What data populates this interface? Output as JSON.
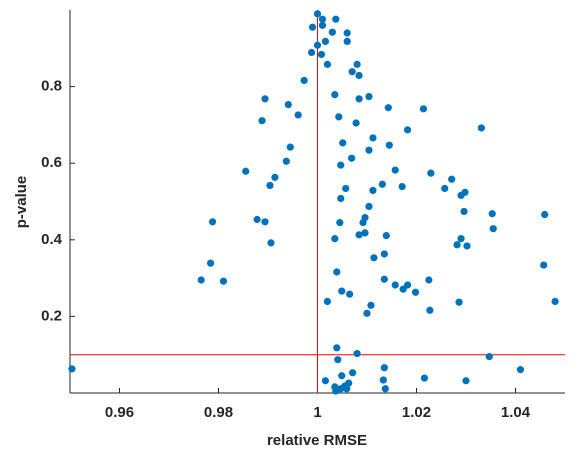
{
  "chart_data": {
    "type": "scatter",
    "xlabel": "relative RMSE",
    "ylabel": "p-value",
    "xlim": [
      0.95,
      1.05
    ],
    "ylim": [
      0,
      1
    ],
    "xticks": [
      0.96,
      0.98,
      1,
      1.02,
      1.04
    ],
    "yticks": [
      0.2,
      0.4,
      0.6,
      0.8
    ],
    "reference_lines": [
      {
        "axis": "x",
        "value": 1,
        "color": "#ff0000"
      },
      {
        "axis": "y",
        "value": 0.1,
        "color": "#ff0000"
      }
    ],
    "series": [
      {
        "color": "#0072bd",
        "x": [
          0.9504,
          1.0,
          1.001,
          1.0037,
          1.001,
          0.999,
          1.003,
          1.006,
          1.0016,
          1.0,
          1.006,
          0.9988,
          1.0008,
          1.002,
          1.008,
          1.007,
          1.0084,
          0.9973,
          1.0035,
          0.9894,
          1.0104,
          1.0084,
          0.9941,
          1.0143,
          1.0214,
          0.9961,
          0.9888,
          1.0043,
          1.0078,
          1.0182,
          1.0331,
          1.0112,
          1.0145,
          1.0051,
          0.9945,
          1.0104,
          1.0069,
          0.9937,
          1.0047,
          1.0157,
          0.9855,
          1.0229,
          1.0271,
          0.9914,
          1.0131,
          0.9904,
          1.0057,
          1.0171,
          1.0112,
          1.0257,
          1.029,
          1.0298,
          1.0047,
          1.0104,
          1.0353,
          1.0459,
          1.0296,
          1.0096,
          0.9878,
          0.9894,
          0.9788,
          1.0092,
          1.0045,
          1.0355,
          1.0096,
          1.0084,
          1.0139,
          1.029,
          1.0282,
          1.0035,
          0.9906,
          1.0302,
          1.0135,
          1.0114,
          0.9784,
          1.0457,
          1.0039,
          0.9765,
          0.981,
          1.0135,
          1.0225,
          1.0157,
          1.0182,
          1.0173,
          1.0198,
          1.0049,
          1.0065,
          1.002,
          1.048,
          1.0286,
          1.0108,
          1.01,
          1.0227,
          1.0039,
          1.008,
          1.0041,
          1.0347,
          1.0135,
          1.041,
          1.0071,
          1.0049,
          1.0216,
          1.0133,
          1.0016,
          1.03,
          1.0063,
          1.0055,
          1.0035,
          1.0047,
          1.0137,
          1.0037,
          1.0059
        ],
        "values": [
          0.063,
          0.99,
          0.976,
          0.976,
          0.96,
          0.955,
          0.942,
          0.94,
          0.918,
          0.908,
          0.918,
          0.889,
          0.884,
          0.858,
          0.858,
          0.839,
          0.829,
          0.816,
          0.779,
          0.768,
          0.774,
          0.768,
          0.753,
          0.745,
          0.742,
          0.726,
          0.711,
          0.721,
          0.705,
          0.687,
          0.692,
          0.666,
          0.647,
          0.653,
          0.642,
          0.634,
          0.613,
          0.605,
          0.595,
          0.582,
          0.579,
          0.574,
          0.558,
          0.563,
          0.545,
          0.542,
          0.534,
          0.539,
          0.529,
          0.534,
          0.516,
          0.524,
          0.508,
          0.487,
          0.468,
          0.466,
          0.474,
          0.458,
          0.453,
          0.447,
          0.447,
          0.445,
          0.445,
          0.429,
          0.418,
          0.413,
          0.411,
          0.403,
          0.387,
          0.403,
          0.392,
          0.384,
          0.363,
          0.353,
          0.339,
          0.334,
          0.316,
          0.295,
          0.292,
          0.297,
          0.295,
          0.282,
          0.282,
          0.271,
          0.263,
          0.266,
          0.258,
          0.239,
          0.239,
          0.237,
          0.229,
          0.208,
          0.216,
          0.118,
          0.103,
          0.087,
          0.095,
          0.066,
          0.061,
          0.053,
          0.045,
          0.039,
          0.034,
          0.032,
          0.032,
          0.026,
          0.018,
          0.016,
          0.011,
          0.011,
          0.005,
          0.011
        ]
      }
    ]
  }
}
